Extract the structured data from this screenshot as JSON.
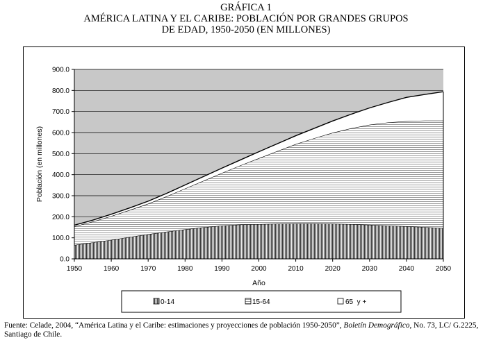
{
  "figure": {
    "title_line1": "GRÁFICA 1",
    "title_line2": "AMÉRICA LATINA Y EL CARIBE: POBLACIÓN POR GRANDES GRUPOS",
    "title_line3": "DE EDAD, 1950-2050 (EN MILLONES)",
    "source_prefix": "Fuente: Celade, 2004, “América Latina y el Caribe: estimaciones y proyecciones de población 1950-2050”, ",
    "source_journal": "Boletín Demográfico",
    "source_suffix": ", No. 73, LC/ G.2225, Santiago de Chile."
  },
  "colors": {
    "hatch_dark": "#3a3a3a",
    "hatch_light": "#9a9a9a",
    "fill_65": "#ffffff",
    "stroke": "#000000"
  },
  "chart_data": {
    "type": "area",
    "stacked": true,
    "title": "",
    "xlabel": "Año",
    "ylabel": "Población (en millones)",
    "xlim": [
      1950,
      2050
    ],
    "ylim": [
      0,
      900
    ],
    "x_ticks": [
      "1950",
      "1960",
      "1970",
      "1980",
      "1990",
      "2000",
      "2010",
      "2020",
      "2030",
      "2040",
      "2050"
    ],
    "y_ticks": [
      "0.0",
      "100.0",
      "200.0",
      "300.0",
      "400.0",
      "500.0",
      "600.0",
      "700.0",
      "800.0",
      "900.0"
    ],
    "grid": "horizontal",
    "legend_position": "bottom",
    "x": [
      1950,
      1955,
      1960,
      1965,
      1970,
      1975,
      1980,
      1985,
      1990,
      1995,
      2000,
      2005,
      2010,
      2015,
      2020,
      2025,
      2030,
      2035,
      2040,
      2045,
      2050
    ],
    "series": [
      {
        "name": "0-14",
        "pattern": "vertical-lines",
        "values": [
          66,
          78,
          90,
          104,
          117,
          129,
          140,
          150,
          158,
          163,
          165,
          167,
          168,
          168,
          167,
          165,
          162,
          158,
          155,
          151,
          146
        ]
      },
      {
        "name": "15-64",
        "pattern": "horizontal-lines",
        "values": [
          88,
          99,
          113,
          128,
          145,
          168,
          194,
          221,
          250,
          281,
          313,
          345,
          377,
          405,
          432,
          455,
          475,
          490,
          499,
          506,
          511
        ]
      },
      {
        "name": "65  y +",
        "pattern": "solid-white",
        "values": [
          6,
          7,
          9,
          10,
          12,
          14,
          17,
          20,
          23,
          26,
          31,
          35,
          40,
          47,
          56,
          67,
          80,
          95,
          113,
          124,
          137
        ]
      }
    ]
  }
}
